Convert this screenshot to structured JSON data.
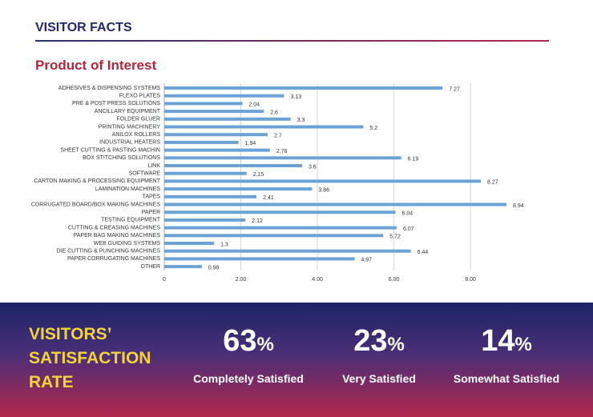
{
  "header": {
    "title": "VISITOR FACTS"
  },
  "chart_data": {
    "type": "bar",
    "orientation": "horizontal",
    "title": "Product of Interest",
    "categories": [
      "ADHESIVES & DISPENSING SYSTEMS",
      "FLEXO PLATES",
      "PRE & POST PRESS SOLUTIONS",
      "ANCILLARY EQUIPMENT",
      "FOLDER GLUER",
      "PRINTING MACHINERY",
      "ANILOX ROLLERS",
      "INDUSTRIAL HEATERS",
      "SHEET CUTTING & PASTING MACHIN",
      "BOX STITCHING SOLUTIONS",
      "LINK",
      "SOFTWARE",
      "CARTON MAKING & PROCESSING EQUIPMENT",
      "LAMINATION MACHINES",
      "TAPES",
      "CORRUGATED BOARD/BOX MAKING MACHINES",
      "PAPER",
      "TESTING EQUIPMENT",
      "CUTTING & CREASING MACHINES",
      "PAPER BAG MAKING MACHINES",
      "WEB GUIDING SYSTEMS",
      "DIE CUTTING & PUNCHING MACHINES",
      "PAPER CORRUGATING MACHINES",
      "OTHER"
    ],
    "values": [
      7.27,
      3.13,
      2.04,
      2.6,
      3.3,
      5.2,
      2.7,
      1.94,
      2.76,
      6.19,
      3.6,
      2.15,
      8.27,
      3.86,
      2.41,
      8.94,
      6.04,
      2.12,
      6.07,
      5.72,
      1.3,
      6.44,
      4.97,
      0.98
    ],
    "color": "#6ba3d6",
    "xlim": [
      0,
      9.4
    ],
    "xticks": [
      0,
      {
        "value": 2,
        "label": "2.00"
      },
      {
        "value": 4,
        "label": "4.00"
      },
      {
        "value": 6,
        "label": "6.00"
      },
      {
        "value": 8,
        "label": "8.00"
      }
    ],
    "grid": true
  },
  "satisfaction": {
    "title": [
      "VISITORS’",
      "SATISFACTION",
      "RATE"
    ],
    "items": [
      {
        "value": "63",
        "unit": "%",
        "label": "Completely Satisfied"
      },
      {
        "value": "23",
        "unit": "%",
        "label": "Very Satisfied"
      },
      {
        "value": "14",
        "unit": "%",
        "label": "Somewhat Satisfied"
      }
    ]
  }
}
